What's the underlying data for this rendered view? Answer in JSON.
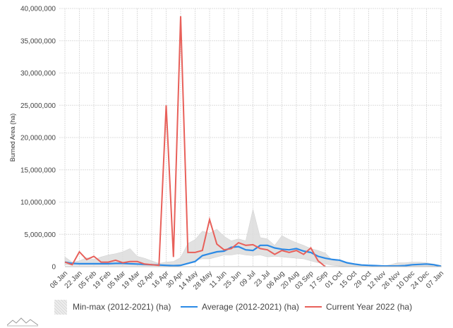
{
  "chart_data": {
    "type": "line",
    "title": "",
    "xlabel": "",
    "ylabel": "Burned Area (ha)",
    "ylim": [
      0,
      40000000
    ],
    "yticks": [
      0,
      5000000,
      10000000,
      15000000,
      20000000,
      25000000,
      30000000,
      35000000,
      40000000
    ],
    "ytick_labels": [
      "0",
      "5,000,000",
      "10,000,000",
      "15,000,000",
      "20,000,000",
      "25,000,000",
      "30,000,000",
      "35,000,000",
      "40,000,000"
    ],
    "xtick_labels": [
      "08 Jan",
      "22 Jan",
      "05 Feb",
      "19 Feb",
      "05 Mar",
      "19 Mar",
      "02 Apr",
      "16 Apr",
      "30 Apr",
      "14 May",
      "28 May",
      "11 Jun",
      "25 Jun",
      "09 Jul",
      "23 Jul",
      "06 Aug",
      "20 Aug",
      "03 Sep",
      "17 Sep",
      "01 Oct",
      "15 Oct",
      "29 Oct",
      "12 Nov",
      "26 Nov",
      "10 Dec",
      "24 Dec",
      "07 Jan"
    ],
    "grid": true,
    "legend_position": "bottom",
    "x_weeks": 53,
    "series": [
      {
        "name": "Min-max (2012-2021) (ha)",
        "type": "area",
        "color": "#d9d9d9",
        "min": [
          300000,
          200000,
          200000,
          200000,
          200000,
          200000,
          200000,
          200000,
          200000,
          200000,
          200000,
          150000,
          150000,
          100000,
          100000,
          100000,
          200000,
          500000,
          1000000,
          1200000,
          1200000,
          1500000,
          1800000,
          1800000,
          2000000,
          1800000,
          1700000,
          1800000,
          1500000,
          1600000,
          1500000,
          1400000,
          1300000,
          1200000,
          900000,
          600000,
          400000,
          200000,
          100000,
          50000,
          50000,
          30000,
          30000,
          30000,
          30000,
          30000,
          30000,
          50000,
          100000,
          100000,
          100000,
          80000,
          50000
        ],
        "max": [
          1500000,
          700000,
          900000,
          1400000,
          1100000,
          1500000,
          1800000,
          2000000,
          2300000,
          2800000,
          1600000,
          1300000,
          900000,
          500000,
          700000,
          800000,
          1400000,
          3600000,
          4200000,
          5500000,
          5200000,
          5800000,
          4700000,
          4000000,
          4300000,
          4000000,
          8900000,
          4500000,
          4300000,
          3300000,
          4800000,
          4200000,
          3700000,
          3300000,
          2800000,
          2500000,
          2100000,
          1000000,
          800000,
          500000,
          300000,
          200000,
          150000,
          100000,
          100000,
          300000,
          600000,
          600000,
          700000,
          700000,
          600000,
          400000,
          200000
        ]
      },
      {
        "name": "Average (2012-2021) (ha)",
        "color": "#2b8ae6",
        "values": [
          700000,
          500000,
          450000,
          450000,
          450000,
          450000,
          450000,
          500000,
          500000,
          450000,
          400000,
          350000,
          300000,
          250000,
          200000,
          150000,
          200000,
          500000,
          800000,
          1700000,
          2000000,
          2300000,
          2400000,
          3000000,
          3100000,
          2600000,
          2500000,
          3300000,
          3300000,
          2900000,
          2700000,
          2600000,
          2800000,
          2400000,
          2200000,
          1600000,
          1300000,
          1100000,
          1000000,
          600000,
          400000,
          250000,
          200000,
          150000,
          100000,
          100000,
          100000,
          150000,
          300000,
          350000,
          400000,
          300000,
          50000
        ]
      },
      {
        "name": "Current Year 2022 (ha)",
        "color": "#e8605a",
        "values": [
          700000,
          300000,
          2300000,
          1100000,
          1600000,
          700000,
          700000,
          1000000,
          600000,
          800000,
          800000,
          400000,
          300000,
          200000,
          25000000,
          1500000,
          38800000,
          2200000,
          2200000,
          2500000,
          7300000,
          3500000,
          2600000,
          2800000,
          3700000,
          3300000,
          3400000,
          2800000,
          2600000,
          1900000,
          2500000,
          2200000,
          2500000,
          1900000,
          2900000,
          900000,
          0
        ]
      }
    ]
  },
  "legend": {
    "items": [
      {
        "label": "Min-max (2012-2021) (ha)",
        "color": "#e0e0e0"
      },
      {
        "label": "Average (2012-2021) (ha)",
        "color": "#2b8ae6"
      },
      {
        "label": "Current Year 2022 (ha)",
        "color": "#e8605a"
      }
    ]
  },
  "logo": {
    "icon": "mountain-logo-icon"
  }
}
